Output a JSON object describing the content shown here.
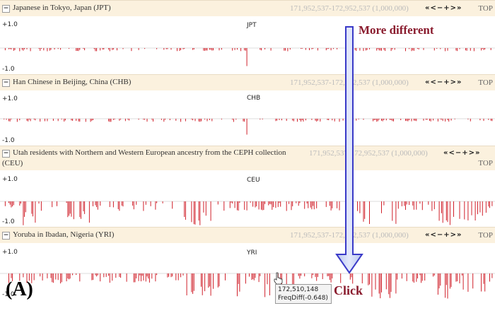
{
  "panels": [
    {
      "id": "jpt",
      "title": "Japanese in Tokyo, Japan (JPT)",
      "title2": "",
      "range": "171,952,537-172,952,537 (1,000,000)",
      "nav": "«<−+>»",
      "top": "TOP",
      "track": "JPT",
      "ymax": "+1.0",
      "ymin": "-1.0"
    },
    {
      "id": "chb",
      "title": "Han Chinese in Beijing, China (CHB)",
      "title2": "",
      "range": "171,952,537-172,952,537 (1,000,000)",
      "nav": "«<−+>»",
      "top": "TOP",
      "track": "CHB",
      "ymax": "+1.0",
      "ymin": "-1.0"
    },
    {
      "id": "ceu",
      "title": "Utah residents with Northern and Western European ancestry from the CEPH collection",
      "title2": "(CEU)",
      "range": "171,952,537-172,952,537 (1,000,000)",
      "nav": "«<−+>»",
      "top": "TOP",
      "track": "CEU",
      "ymax": "+1.0",
      "ymin": "-1.0"
    },
    {
      "id": "yri",
      "title": "Yoruba in Ibadan, Nigeria (YRI)",
      "title2": "",
      "range": "171,952,537-172,952,537 (1,000,000)",
      "nav": "«<−+>»",
      "top": "TOP",
      "track": "YRI",
      "ymax": "+1.0",
      "ymin": "-1.0"
    }
  ],
  "collapse_symbol": "−",
  "annotations": {
    "more_different": "More different",
    "click": "Click",
    "figure_label": "(A)"
  },
  "tooltip": {
    "position": "172,510,148",
    "freqdiff": "FreqDiff(-0.648)"
  },
  "colors": {
    "positive_top": "#2a3f8f",
    "positive_bottom": "#7fbf3f",
    "negative": "#d0202a",
    "arrow_fill": "#c9d4f5",
    "arrow_stroke": "#3a3ac8",
    "annotation": "#8a1c2e"
  }
}
